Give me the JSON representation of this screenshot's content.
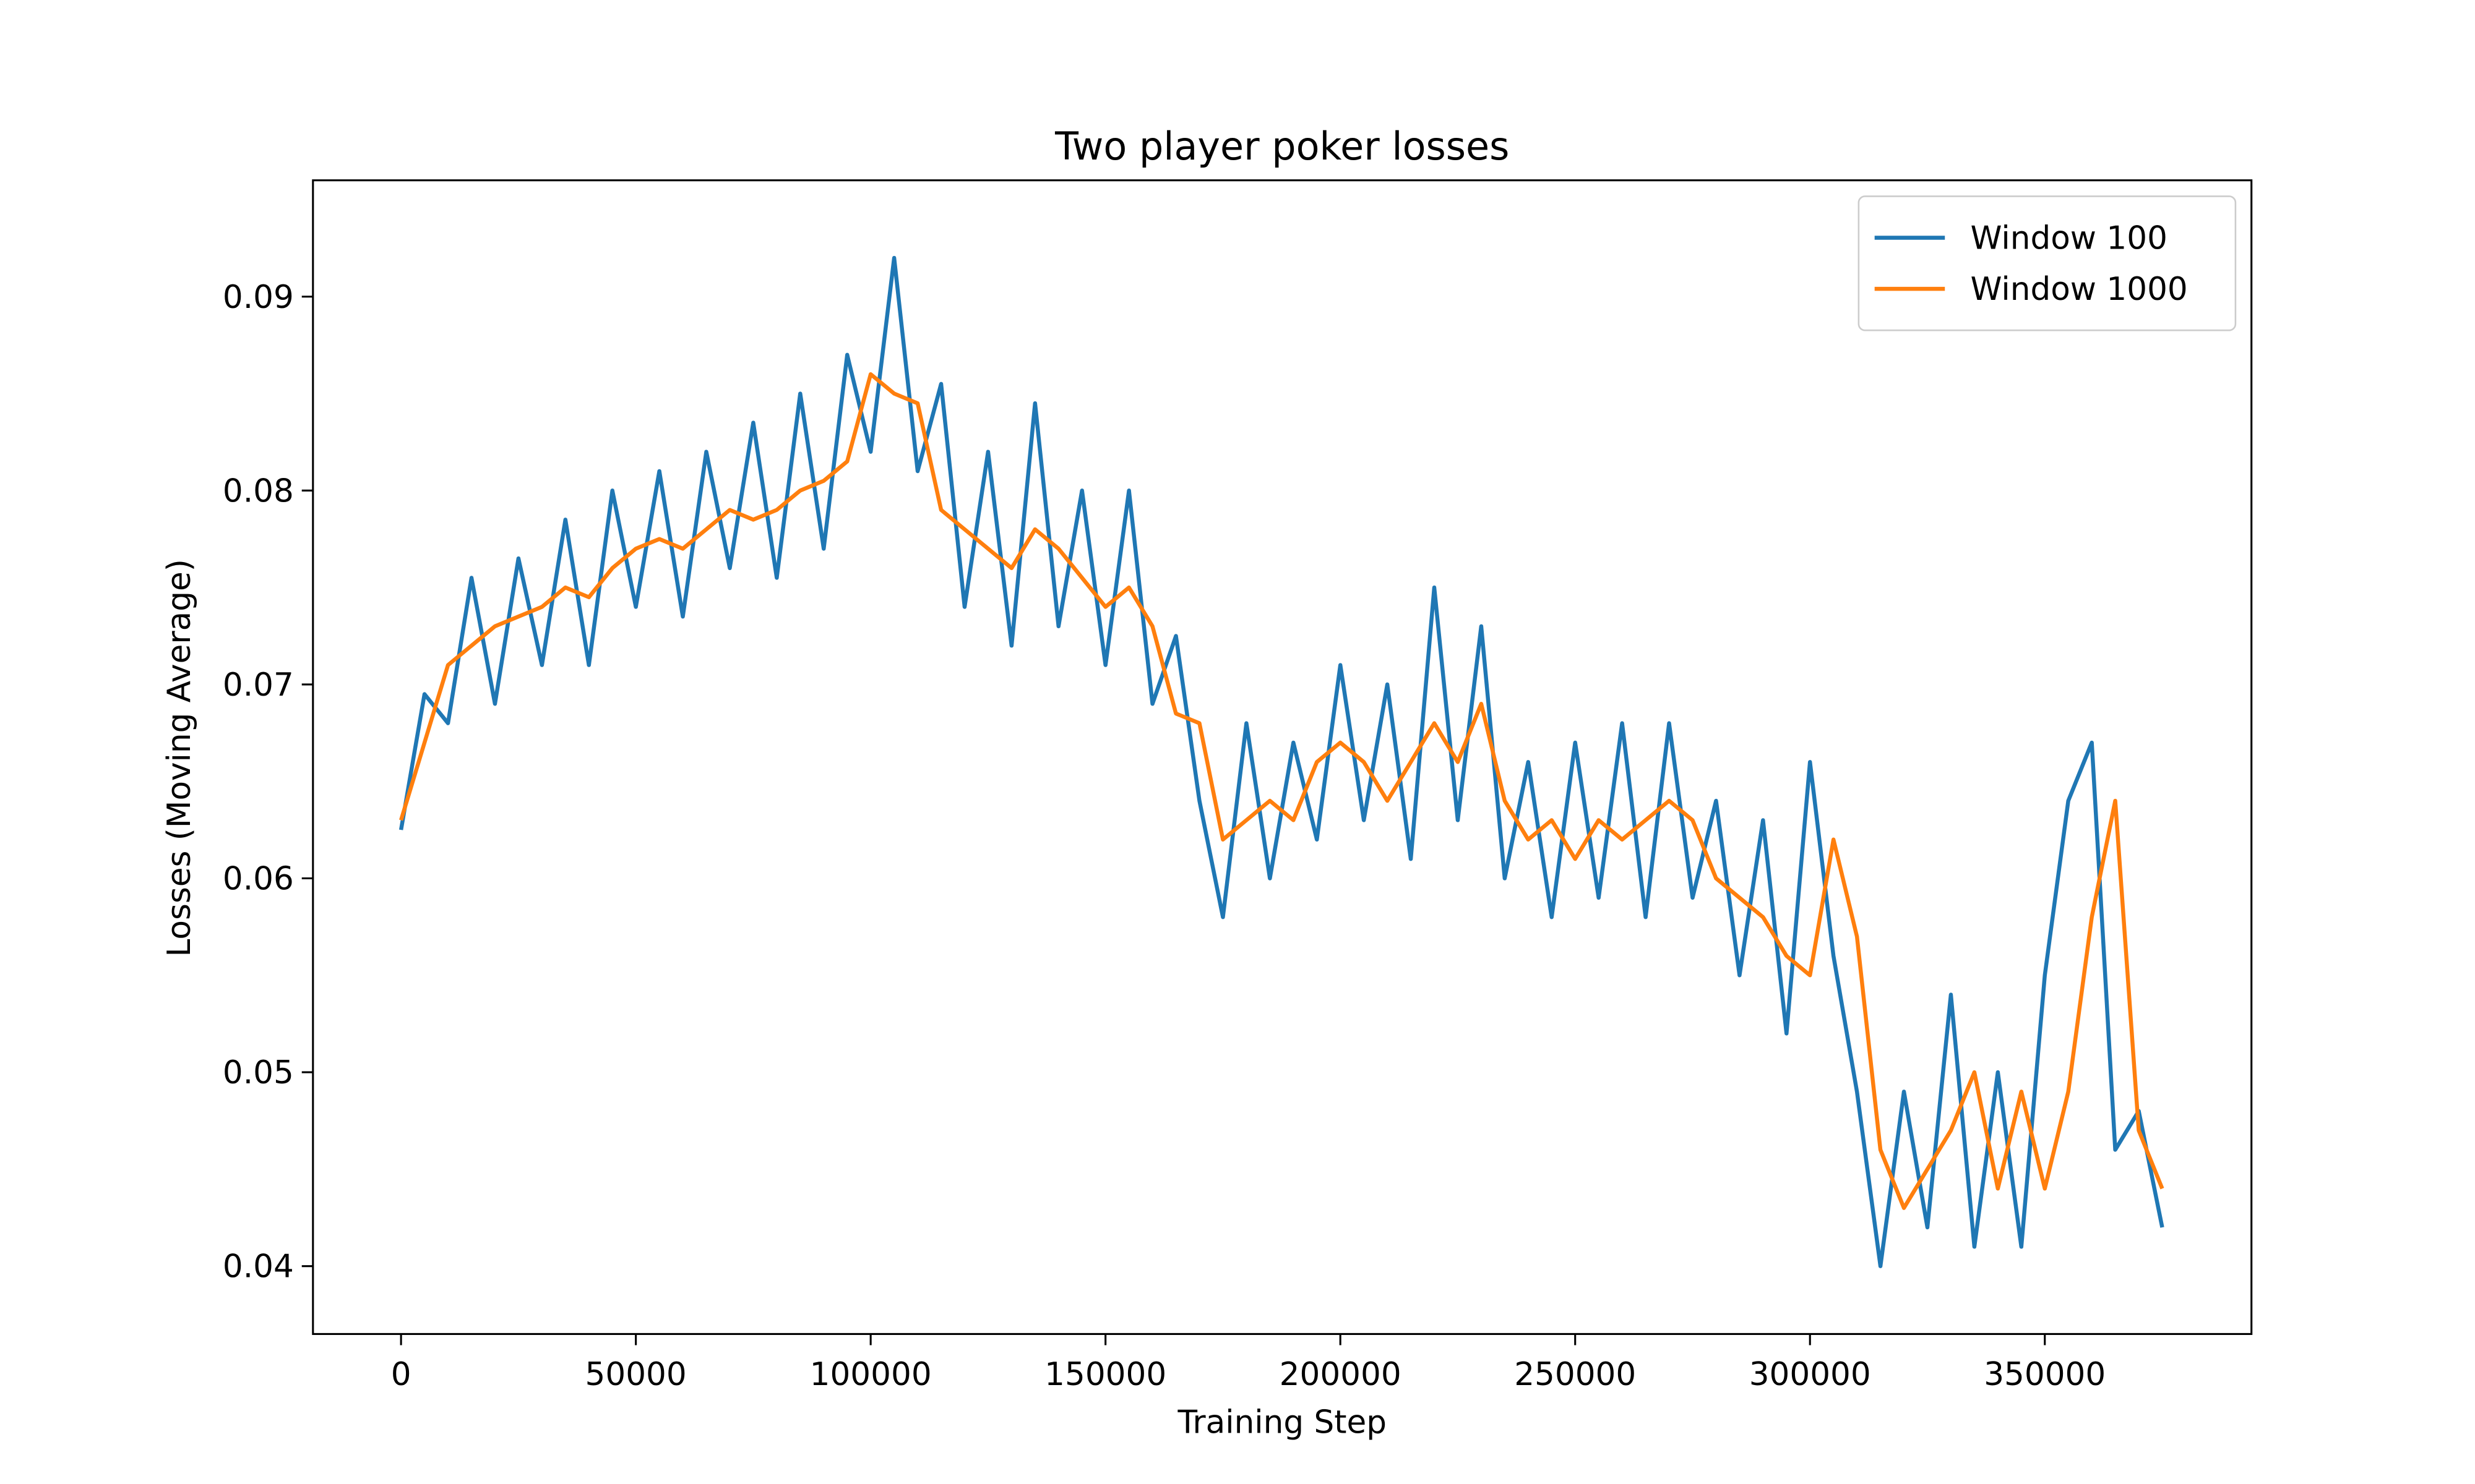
{
  "chart_data": {
    "type": "line",
    "title": "Two player poker losses",
    "x_label": "Training Step",
    "y_label": "Losses (Moving Average)",
    "x": [
      0,
      5000,
      10000,
      15000,
      20000,
      25000,
      30000,
      35000,
      40000,
      45000,
      50000,
      55000,
      60000,
      65000,
      70000,
      75000,
      80000,
      85000,
      90000,
      95000,
      100000,
      105000,
      110000,
      115000,
      120000,
      125000,
      130000,
      135000,
      140000,
      145000,
      150000,
      155000,
      160000,
      165000,
      170000,
      175000,
      180000,
      185000,
      190000,
      195000,
      200000,
      205000,
      210000,
      215000,
      220000,
      225000,
      230000,
      235000,
      240000,
      245000,
      250000,
      255000,
      260000,
      265000,
      270000,
      275000,
      280000,
      285000,
      290000,
      295000,
      300000,
      305000,
      310000,
      315000,
      320000,
      325000,
      330000,
      335000,
      340000,
      345000,
      350000,
      355000,
      360000,
      365000,
      370000,
      375000
    ],
    "series": [
      {
        "name": "Window 100",
        "color": "#1f77b4",
        "values": [
          0.0625,
          0.0695,
          0.068,
          0.0755,
          0.069,
          0.0765,
          0.071,
          0.0785,
          0.071,
          0.08,
          0.074,
          0.081,
          0.0735,
          0.082,
          0.076,
          0.0835,
          0.0755,
          0.085,
          0.077,
          0.087,
          0.082,
          0.092,
          0.081,
          0.0855,
          0.074,
          0.082,
          0.072,
          0.0845,
          0.073,
          0.08,
          0.071,
          0.08,
          0.069,
          0.0725,
          0.064,
          0.058,
          0.068,
          0.06,
          0.067,
          0.062,
          0.071,
          0.063,
          0.07,
          0.061,
          0.075,
          0.063,
          0.073,
          0.06,
          0.066,
          0.058,
          0.067,
          0.059,
          0.068,
          0.058,
          0.068,
          0.059,
          0.064,
          0.055,
          0.063,
          0.052,
          0.066,
          0.056,
          0.049,
          0.04,
          0.049,
          0.042,
          0.054,
          0.041,
          0.05,
          0.041,
          0.055,
          0.064,
          0.067,
          0.046,
          0.048,
          0.042
        ]
      },
      {
        "name": "Window 1000",
        "color": "#ff7f0e",
        "values": [
          0.063,
          0.067,
          0.071,
          0.072,
          0.073,
          0.0735,
          0.074,
          0.075,
          0.0745,
          0.076,
          0.077,
          0.0775,
          0.077,
          0.078,
          0.079,
          0.0785,
          0.079,
          0.08,
          0.0805,
          0.0815,
          0.086,
          0.085,
          0.0845,
          0.079,
          0.078,
          0.077,
          0.076,
          0.078,
          0.077,
          0.0755,
          0.074,
          0.075,
          0.073,
          0.0685,
          0.068,
          0.062,
          0.063,
          0.064,
          0.063,
          0.066,
          0.067,
          0.066,
          0.064,
          0.066,
          0.068,
          0.066,
          0.069,
          0.064,
          0.062,
          0.063,
          0.061,
          0.063,
          0.062,
          0.063,
          0.064,
          0.063,
          0.06,
          0.059,
          0.058,
          0.056,
          0.055,
          0.062,
          0.057,
          0.046,
          0.043,
          0.045,
          0.047,
          0.05,
          0.044,
          0.049,
          0.044,
          0.049,
          0.058,
          0.064,
          0.047,
          0.044
        ]
      }
    ],
    "xlim": [
      -18750,
      394000
    ],
    "xticks": [
      0,
      50000,
      100000,
      150000,
      200000,
      250000,
      300000,
      350000
    ],
    "ylim": [
      0.0365,
      0.096
    ],
    "yticks": [
      0.04,
      0.05,
      0.06,
      0.07,
      0.08,
      0.09
    ],
    "legend": "upper right"
  }
}
